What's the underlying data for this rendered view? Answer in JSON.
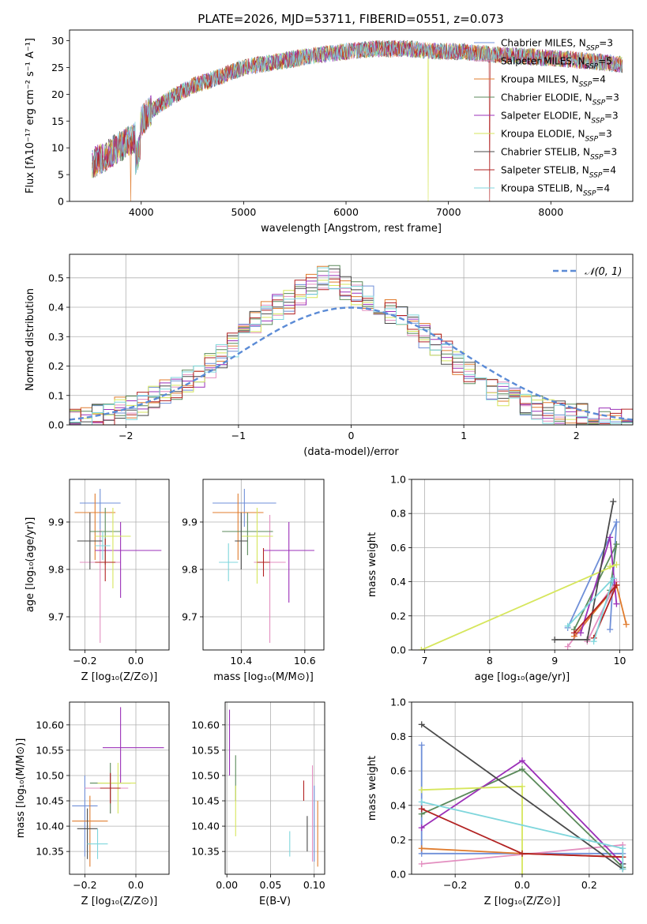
{
  "figure_title": "PLATE=2026, MJD=53711, FIBERID=0551, z=0.073",
  "colors": [
    "#6f8fd8",
    "#e38fc0",
    "#e07c2e",
    "#5b8a5b",
    "#9b30b8",
    "#d6e65c",
    "#4a4a4a",
    "#b22222",
    "#7fd6dc"
  ],
  "chart_data": [
    {
      "id": "spectrum",
      "type": "line",
      "title": "",
      "xlabel": "wavelength [Angstrom, rest frame]",
      "ylabel": "Flux [fλ10⁻¹⁷ erg cm⁻² s⁻¹ A⁻¹]",
      "xlim": [
        3300,
        8800
      ],
      "ylim": [
        0,
        32
      ],
      "xticks": [
        4000,
        5000,
        6000,
        7000,
        8000
      ],
      "yticks": [
        0,
        5,
        10,
        15,
        20,
        25,
        30
      ],
      "grid": false,
      "legend_position": "top-right",
      "series": [
        {
          "name": "Chabrier MILES, N_SSP=3"
        },
        {
          "name": "Salpeter MILES, N_SSP=5"
        },
        {
          "name": "Kroupa MILES, N_SSP=4"
        },
        {
          "name": "Chabrier ELODIE, N_SSP=3"
        },
        {
          "name": "Salpeter ELODIE, N_SSP=3"
        },
        {
          "name": "Kroupa ELODIE, N_SSP=3"
        },
        {
          "name": "Chabrier STELIB, N_SSP=3"
        },
        {
          "name": "Salpeter STELIB, N_SSP=4"
        },
        {
          "name": "Kroupa STELIB, N_SSP=4"
        }
      ],
      "continuum": {
        "x": [
          3520,
          3700,
          3850,
          3950,
          4000,
          4100,
          4300,
          4500,
          4800,
          5000,
          5300,
          5600,
          6000,
          6300,
          6600,
          6900,
          7100,
          7400,
          7800,
          8200,
          8500,
          8700
        ],
        "y": [
          7,
          9,
          11,
          12,
          15,
          17,
          19.5,
          21.5,
          23.5,
          25,
          26,
          27,
          28,
          28.5,
          28.5,
          28,
          28,
          27.5,
          27,
          26.5,
          26,
          25.5
        ]
      },
      "features": [
        {
          "x": 3900,
          "y_min": 0
        },
        {
          "x": 6800,
          "y_min": 0
        },
        {
          "x": 7400,
          "y_min": 0
        }
      ]
    },
    {
      "id": "residuals",
      "type": "histogram",
      "title": "",
      "xlabel": "(data-model)/error",
      "ylabel": "Normed distribution",
      "xlim": [
        -2.5,
        2.5
      ],
      "ylim": [
        0,
        0.58
      ],
      "xticks": [
        -2,
        -1,
        0,
        1,
        2
      ],
      "yticks": [
        0.0,
        0.1,
        0.2,
        0.3,
        0.4,
        0.5
      ],
      "grid": true,
      "legend_position": "top-right",
      "reference_curve": {
        "name": "𝒩(0, 1)",
        "mean": 0,
        "sigma": 1
      },
      "bin_width": 0.1,
      "base_heights": [
        0.02,
        0.025,
        0.03,
        0.04,
        0.05,
        0.06,
        0.07,
        0.09,
        0.11,
        0.13,
        0.15,
        0.17,
        0.2,
        0.23,
        0.27,
        0.31,
        0.35,
        0.38,
        0.4,
        0.42,
        0.45,
        0.47,
        0.5,
        0.5,
        0.47,
        0.45,
        0.43,
        0.41,
        0.39,
        0.37,
        0.34,
        0.3,
        0.27,
        0.24,
        0.21,
        0.18,
        0.15,
        0.13,
        0.11,
        0.09,
        0.07,
        0.06,
        0.05,
        0.04,
        0.035,
        0.03,
        0.025,
        0.02,
        0.015,
        0.01
      ]
    },
    {
      "id": "age-vs-Z",
      "type": "errorbar",
      "xlabel": "Z [log₁₀(Z/Z⊙)]",
      "ylabel": "age  [log₁₀(age/yr)]",
      "xlim": [
        -0.26,
        0.13
      ],
      "ylim": [
        9.63,
        9.99
      ],
      "xticks": [
        -0.2,
        0.0
      ],
      "yticks": [
        9.7,
        9.8,
        9.9
      ],
      "grid": true,
      "points": [
        {
          "x": -0.14,
          "y": 9.94,
          "xerr": [
            0.08,
            0.08
          ],
          "yerr": [
            0.08,
            0.03
          ]
        },
        {
          "x": -0.14,
          "y": 9.815,
          "xerr": [
            0.08,
            0.08
          ],
          "yerr": [
            0.17,
            0.07
          ]
        },
        {
          "x": -0.16,
          "y": 9.92,
          "xerr": [
            0.08,
            0.08
          ],
          "yerr": [
            0.1,
            0.04
          ]
        },
        {
          "x": -0.12,
          "y": 9.88,
          "xerr": [
            0.06,
            0.06
          ],
          "yerr": [
            0.07,
            0.05
          ]
        },
        {
          "x": -0.06,
          "y": 9.84,
          "xerr": [
            0.1,
            0.16
          ],
          "yerr": [
            0.1,
            0.06
          ]
        },
        {
          "x": -0.09,
          "y": 9.87,
          "xerr": [
            0.07,
            0.07
          ],
          "yerr": [
            0.11,
            0.06
          ]
        },
        {
          "x": -0.18,
          "y": 9.86,
          "xerr": [
            0.05,
            0.05
          ],
          "yerr": [
            0.06,
            0.06
          ]
        },
        {
          "x": -0.12,
          "y": 9.815,
          "xerr": [
            0.04,
            0.04
          ],
          "yerr": [
            0.04,
            0.05
          ]
        },
        {
          "x": -0.13,
          "y": 9.85,
          "xerr": [
            0.03,
            0.03
          ],
          "yerr": [
            0.03,
            0.03
          ]
        }
      ]
    },
    {
      "id": "age-vs-mass",
      "type": "errorbar",
      "xlabel": "mass [log₁₀(M/M⊙)]",
      "ylabel": "",
      "xlim": [
        10.28,
        10.66
      ],
      "ylim": [
        9.63,
        9.99
      ],
      "xticks": [
        10.4,
        10.6
      ],
      "yticks": [
        9.7,
        9.8,
        9.9
      ],
      "grid": true,
      "points": [
        {
          "x": 10.41,
          "y": 9.94,
          "xerr": [
            0.1,
            0.1
          ],
          "yerr": [
            0.05,
            0.03
          ]
        },
        {
          "x": 10.49,
          "y": 9.815,
          "xerr": [
            0.05,
            0.05
          ],
          "yerr": [
            0.17,
            0.1
          ]
        },
        {
          "x": 10.39,
          "y": 9.92,
          "xerr": [
            0.08,
            0.08
          ],
          "yerr": [
            0.1,
            0.04
          ]
        },
        {
          "x": 10.42,
          "y": 9.88,
          "xerr": [
            0.08,
            0.08
          ],
          "yerr": [
            0.05,
            0.04
          ]
        },
        {
          "x": 10.55,
          "y": 9.84,
          "xerr": [
            0.08,
            0.08
          ],
          "yerr": [
            0.11,
            0.06
          ]
        },
        {
          "x": 10.45,
          "y": 9.87,
          "xerr": [
            0.05,
            0.05
          ],
          "yerr": [
            0.1,
            0.06
          ]
        },
        {
          "x": 10.4,
          "y": 9.86,
          "xerr": [
            0.02,
            0.02
          ],
          "yerr": [
            0.06,
            0.06
          ]
        },
        {
          "x": 10.47,
          "y": 9.815,
          "xerr": [
            0.02,
            0.02
          ],
          "yerr": [
            0.03,
            0.03
          ]
        },
        {
          "x": 10.36,
          "y": 9.815,
          "xerr": [
            0.03,
            0.03
          ],
          "yerr": [
            0.04,
            0.04
          ]
        }
      ]
    },
    {
      "id": "massweight-vs-age",
      "type": "line",
      "xlabel": "age  [log₁₀(age/yr)]",
      "ylabel": "mass weight",
      "xlim": [
        6.8,
        10.2
      ],
      "ylim": [
        0.0,
        1.0
      ],
      "xticks": [
        7,
        8,
        9,
        10
      ],
      "yticks": [
        0.0,
        0.2,
        0.4,
        0.6,
        0.8,
        1.0
      ],
      "grid": true,
      "series": [
        {
          "x": [
            9.2,
            9.95,
            9.85
          ],
          "y": [
            0.13,
            0.75,
            0.12
          ]
        },
        {
          "x": [
            9.2,
            9.95,
            9.5
          ],
          "y": [
            0.02,
            0.4,
            0.05
          ]
        },
        {
          "x": [
            9.3,
            9.95,
            10.1
          ],
          "y": [
            0.08,
            0.38,
            0.15
          ]
        },
        {
          "x": [
            9.3,
            9.95,
            9.85
          ],
          "y": [
            0.12,
            0.62,
            0.35
          ]
        },
        {
          "x": [
            9.4,
            9.85,
            9.95
          ],
          "y": [
            0.1,
            0.66,
            0.27
          ]
        },
        {
          "x": [
            6.95,
            9.95,
            9.85
          ],
          "y": [
            0.0,
            0.5,
            0.49
          ]
        },
        {
          "x": [
            9.0,
            9.5,
            9.9
          ],
          "y": [
            0.06,
            0.06,
            0.87
          ]
        },
        {
          "x": [
            9.3,
            9.95,
            9.6
          ],
          "y": [
            0.1,
            0.38,
            0.07
          ]
        },
        {
          "x": [
            9.2,
            9.9,
            9.6
          ],
          "y": [
            0.14,
            0.42,
            0.05
          ]
        }
      ]
    },
    {
      "id": "mass-vs-Z",
      "type": "errorbar",
      "xlabel": "Z [log₁₀(Z/Z⊙)]",
      "ylabel": "mass [log₁₀(M/M⊙)]",
      "xlim": [
        -0.26,
        0.13
      ],
      "ylim": [
        10.305,
        10.645
      ],
      "xticks": [
        -0.2,
        0.0
      ],
      "yticks": [
        10.35,
        10.4,
        10.45,
        10.5,
        10.55,
        10.6
      ],
      "grid": true,
      "points": [
        {
          "x": -0.2,
          "y": 10.44,
          "xerr": [
            0.05,
            0.05
          ],
          "yerr": [
            0.1,
            0.06
          ]
        },
        {
          "x": -0.1,
          "y": 10.475,
          "xerr": [
            0.1,
            0.07
          ],
          "yerr": [
            0.05,
            0.03
          ]
        },
        {
          "x": -0.18,
          "y": 10.41,
          "xerr": [
            0.07,
            0.07
          ],
          "yerr": [
            0.09,
            0.05
          ]
        },
        {
          "x": -0.1,
          "y": 10.485,
          "xerr": [
            0.08,
            0.08
          ],
          "yerr": [
            0.06,
            0.04
          ]
        },
        {
          "x": -0.06,
          "y": 10.555,
          "xerr": [
            0.07,
            0.17
          ],
          "yerr": [
            0.07,
            0.08
          ]
        },
        {
          "x": -0.07,
          "y": 10.485,
          "xerr": [
            0.08,
            0.07
          ],
          "yerr": [
            0.06,
            0.04
          ]
        },
        {
          "x": -0.19,
          "y": 10.395,
          "xerr": [
            0.04,
            0.04
          ],
          "yerr": [
            0.06,
            0.04
          ]
        },
        {
          "x": -0.1,
          "y": 10.475,
          "xerr": [
            0.04,
            0.04
          ],
          "yerr": [
            0.03,
            0.03
          ]
        },
        {
          "x": -0.15,
          "y": 10.365,
          "xerr": [
            0.04,
            0.04
          ],
          "yerr": [
            0.03,
            0.03
          ]
        }
      ]
    },
    {
      "id": "mass-vs-ebv",
      "type": "errorbar",
      "xlabel": "E(B-V)",
      "ylabel": "",
      "xlim": [
        -0.002,
        0.112
      ],
      "ylim": [
        10.305,
        10.645
      ],
      "xticks": [
        0.0,
        0.05,
        0.1
      ],
      "yticks": [
        10.35,
        10.4,
        10.45,
        10.5,
        10.55,
        10.6
      ],
      "grid": true,
      "points": [
        {
          "x": 0.1,
          "y": 10.4,
          "xerr": [
            0,
            0
          ],
          "yerr": [
            0.07,
            0.08
          ]
        },
        {
          "x": 0.098,
          "y": 10.42,
          "xerr": [
            0,
            0
          ],
          "yerr": [
            0.09,
            0.1
          ]
        },
        {
          "x": 0.104,
          "y": 10.39,
          "xerr": [
            0,
            0
          ],
          "yerr": [
            0.07,
            0.06
          ]
        },
        {
          "x": 0.01,
          "y": 10.49,
          "xerr": [
            0,
            0
          ],
          "yerr": [
            0.04,
            0.05
          ]
        },
        {
          "x": 0.003,
          "y": 10.56,
          "xerr": [
            0,
            0
          ],
          "yerr": [
            0.06,
            0.07
          ]
        },
        {
          "x": 0.01,
          "y": 10.42,
          "xerr": [
            0,
            0
          ],
          "yerr": [
            0.04,
            0.06
          ]
        },
        {
          "x": 0.092,
          "y": 10.39,
          "xerr": [
            0,
            0
          ],
          "yerr": [
            0.04,
            0.03
          ]
        },
        {
          "x": 0.088,
          "y": 10.47,
          "xerr": [
            0,
            0
          ],
          "yerr": [
            0.02,
            0.02
          ]
        },
        {
          "x": 0.072,
          "y": 10.37,
          "xerr": [
            0,
            0
          ],
          "yerr": [
            0.03,
            0.02
          ]
        }
      ]
    },
    {
      "id": "massweight-vs-Z",
      "type": "line",
      "xlabel": "Z [log₁₀(Z/Z⊙)]",
      "ylabel": "mass weight",
      "xlim": [
        -0.33,
        0.33
      ],
      "ylim": [
        0.0,
        1.0
      ],
      "xticks": [
        -0.2,
        0.0,
        0.2
      ],
      "yticks": [
        0.0,
        0.2,
        0.4,
        0.6,
        0.8,
        1.0
      ],
      "grid": true,
      "series": [
        {
          "x": [
            -0.3,
            -0.3,
            0.3
          ],
          "y": [
            0.75,
            0.12,
            0.12
          ]
        },
        {
          "x": [
            -0.3,
            0.3,
            0.3
          ],
          "y": [
            0.06,
            0.17,
            0.1
          ]
        },
        {
          "x": [
            -0.3,
            0.0,
            0.3
          ],
          "y": [
            0.15,
            0.12,
            0.1
          ]
        },
        {
          "x": [
            -0.3,
            0.0,
            0.3
          ],
          "y": [
            0.35,
            0.61,
            0.04
          ]
        },
        {
          "x": [
            -0.3,
            0.0,
            0.3
          ],
          "y": [
            0.27,
            0.66,
            0.06
          ]
        },
        {
          "x": [
            -0.3,
            0.0,
            0.0
          ],
          "y": [
            0.49,
            0.51,
            0.0
          ]
        },
        {
          "x": [
            -0.3,
            0.3,
            0.3
          ],
          "y": [
            0.87,
            0.03,
            0.06
          ]
        },
        {
          "x": [
            -0.3,
            0.0,
            0.3
          ],
          "y": [
            0.38,
            0.12,
            0.1
          ]
        },
        {
          "x": [
            -0.3,
            0.3,
            0.3
          ],
          "y": [
            0.42,
            0.15,
            0.03
          ]
        }
      ]
    }
  ]
}
